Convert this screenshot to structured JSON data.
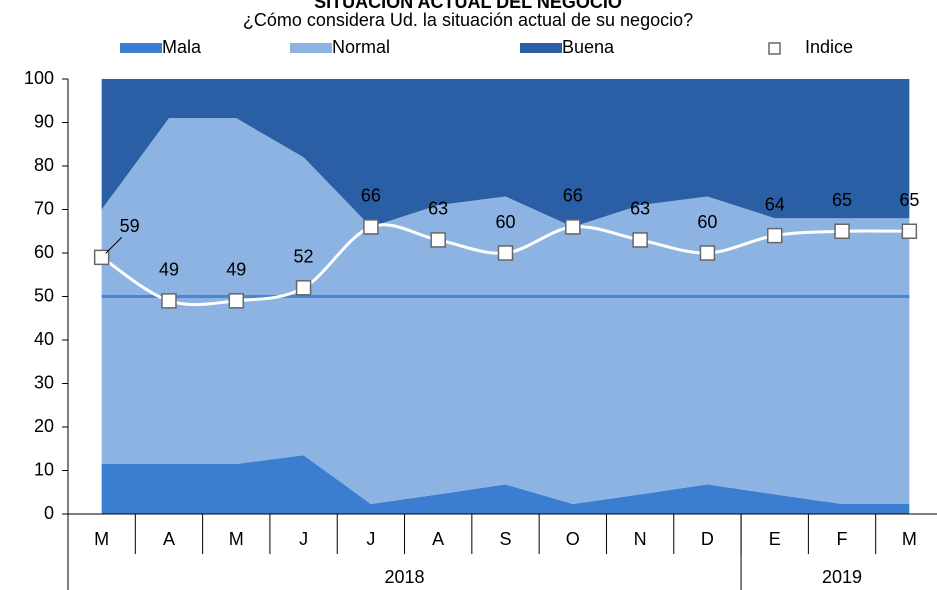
{
  "chart_data": {
    "type": "stacked-area",
    "title": "SITUACIÓN ACTUAL DEL NEGOCIO",
    "subtitle": "¿Cómo considera Ud. la situación actual de su negocio?",
    "categories": [
      "M",
      "A",
      "M",
      "J",
      "J",
      "A",
      "S",
      "O",
      "N",
      "D",
      "E",
      "F",
      "M"
    ],
    "groups": [
      {
        "label": "2018",
        "count": 10
      },
      {
        "label": "2019",
        "count": 3
      }
    ],
    "series": [
      {
        "name": "Mala",
        "color": "#3b7dd0",
        "values": [
          11.5,
          11.5,
          11.5,
          13.5,
          2.3,
          4.5,
          6.8,
          2.3,
          4.5,
          6.8,
          4.5,
          2.3,
          2.3
        ]
      },
      {
        "name": "Normal",
        "color": "#8db3e2",
        "values": [
          58.5,
          79.5,
          79.5,
          68.5,
          63.7,
          66.5,
          66.2,
          63.7,
          66.5,
          66.2,
          63.5,
          65.7,
          65.7
        ]
      },
      {
        "name": "Buena",
        "color": "#2a5fa5",
        "values": [
          30,
          9,
          9,
          18,
          34,
          29,
          27,
          34,
          29,
          27,
          32,
          32,
          32
        ]
      }
    ],
    "index_series": {
      "name": "Indice",
      "color": "#ffffff",
      "values": [
        59,
        49,
        49,
        52,
        66,
        63,
        60,
        66,
        63,
        60,
        64,
        65,
        65
      ]
    },
    "reference_line": {
      "value": 50,
      "color": "#4a86d6"
    },
    "ylim": [
      0,
      100
    ],
    "yticks": [
      0,
      10,
      20,
      30,
      40,
      50,
      60,
      70,
      80,
      90,
      100
    ]
  }
}
